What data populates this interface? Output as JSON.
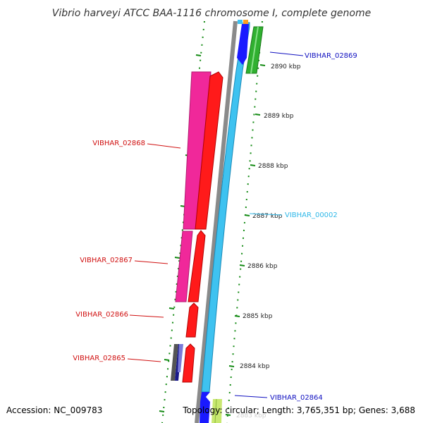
{
  "title": "Vibrio harveyi ATCC BAA-1116 chromosome I, complete genome",
  "footer": {
    "accession": "Accession: NC_009783",
    "topology": "Topology: circular; Length: 3,765,351 bp; Genes: 3,688"
  },
  "ticks": [
    {
      "label": "2890 kbp"
    },
    {
      "label": "2889 kbp"
    },
    {
      "label": "2888 kbp"
    },
    {
      "label": "2887 kbp"
    },
    {
      "label": "2886 kbp"
    },
    {
      "label": "2885 kbp"
    },
    {
      "label": "2884 kbp"
    },
    {
      "label": "2883 kbp"
    }
  ],
  "genes": [
    {
      "label": "VIBHAR_02869",
      "color": "#1010c0"
    },
    {
      "label": "VIBHAR_02868",
      "color": "#d01010"
    },
    {
      "label": "VIBHAR_00002",
      "color": "#30b8e8"
    },
    {
      "label": "VIBHAR_02867",
      "color": "#d01010"
    },
    {
      "label": "VIBHAR_02866",
      "color": "#d01010"
    },
    {
      "label": "VIBHAR_02865",
      "color": "#d01010"
    },
    {
      "label": "VIBHAR_02864",
      "color": "#1010c0"
    }
  ],
  "colors": {
    "backbone": "#8a8a8a",
    "cds_forward": "#ff1a1a",
    "cds_magenta": "#f0289a",
    "cds_cyan": "#3ec2f0",
    "cds_green": "#30b030",
    "cds_blue": "#1a1aff",
    "tick_green": "#138a13"
  }
}
